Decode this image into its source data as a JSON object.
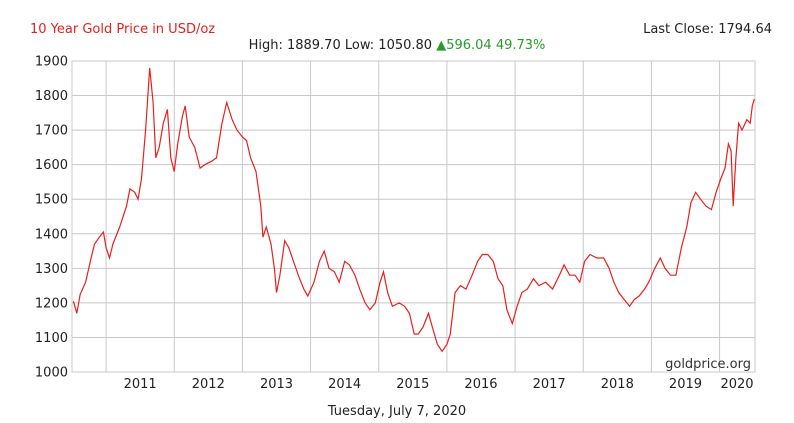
{
  "header": {
    "title": "10 Year Gold Price in USD/oz",
    "last_close_label": "Last Close:",
    "last_close_value": "1794.64",
    "high_label": "High:",
    "high_value": "1889.70",
    "low_label": "Low:",
    "low_value": "1050.80",
    "change_arrow": "▲",
    "change_value": "596.04",
    "change_percent": "49.73%"
  },
  "footer": {
    "date": "Tuesday, July 7, 2020"
  },
  "watermark": "goldprice.org",
  "colors": {
    "line": "#e8201d",
    "title": "#e8201d",
    "change": "#2a9a2a",
    "grid": "#c8c8c8"
  },
  "chart_data": {
    "type": "line",
    "title": "10 Year Gold Price in USD/oz",
    "xlabel": "",
    "ylabel": "",
    "xlim": [
      2010.5,
      2020.52
    ],
    "ylim": [
      1000,
      1900
    ],
    "grid": true,
    "x_ticks": [
      "2011",
      "2012",
      "2013",
      "2014",
      "2015",
      "2016",
      "2017",
      "2018",
      "2019",
      "2020"
    ],
    "y_ticks": [
      "1000",
      "1100",
      "1200",
      "1300",
      "1400",
      "1500",
      "1600",
      "1700",
      "1800",
      "1900"
    ],
    "series": [
      {
        "points": [
          [
            2010.52,
            1205
          ],
          [
            2010.57,
            1170
          ],
          [
            2010.62,
            1225
          ],
          [
            2010.7,
            1260
          ],
          [
            2010.78,
            1330
          ],
          [
            2010.83,
            1370
          ],
          [
            2010.9,
            1390
          ],
          [
            2010.96,
            1405
          ],
          [
            2011.0,
            1360
          ],
          [
            2011.05,
            1330
          ],
          [
            2011.1,
            1370
          ],
          [
            2011.2,
            1420
          ],
          [
            2011.3,
            1480
          ],
          [
            2011.35,
            1530
          ],
          [
            2011.42,
            1520
          ],
          [
            2011.47,
            1500
          ],
          [
            2011.52,
            1560
          ],
          [
            2011.58,
            1700
          ],
          [
            2011.64,
            1880
          ],
          [
            2011.69,
            1780
          ],
          [
            2011.73,
            1620
          ],
          [
            2011.78,
            1650
          ],
          [
            2011.84,
            1720
          ],
          [
            2011.9,
            1760
          ],
          [
            2011.95,
            1620
          ],
          [
            2012.0,
            1580
          ],
          [
            2012.05,
            1660
          ],
          [
            2012.12,
            1740
          ],
          [
            2012.16,
            1770
          ],
          [
            2012.22,
            1680
          ],
          [
            2012.3,
            1650
          ],
          [
            2012.38,
            1590
          ],
          [
            2012.45,
            1600
          ],
          [
            2012.55,
            1610
          ],
          [
            2012.62,
            1620
          ],
          [
            2012.7,
            1720
          ],
          [
            2012.77,
            1780
          ],
          [
            2012.85,
            1730
          ],
          [
            2012.92,
            1700
          ],
          [
            2013.0,
            1680
          ],
          [
            2013.06,
            1670
          ],
          [
            2013.12,
            1620
          ],
          [
            2013.2,
            1580
          ],
          [
            2013.27,
            1480
          ],
          [
            2013.3,
            1390
          ],
          [
            2013.35,
            1420
          ],
          [
            2013.42,
            1370
          ],
          [
            2013.47,
            1300
          ],
          [
            2013.5,
            1230
          ],
          [
            2013.55,
            1280
          ],
          [
            2013.62,
            1380
          ],
          [
            2013.68,
            1360
          ],
          [
            2013.75,
            1320
          ],
          [
            2013.82,
            1280
          ],
          [
            2013.9,
            1240
          ],
          [
            2013.96,
            1220
          ],
          [
            2014.05,
            1260
          ],
          [
            2014.13,
            1320
          ],
          [
            2014.2,
            1350
          ],
          [
            2014.27,
            1300
          ],
          [
            2014.35,
            1290
          ],
          [
            2014.42,
            1260
          ],
          [
            2014.5,
            1320
          ],
          [
            2014.57,
            1310
          ],
          [
            2014.65,
            1280
          ],
          [
            2014.72,
            1240
          ],
          [
            2014.8,
            1200
          ],
          [
            2014.87,
            1180
          ],
          [
            2014.95,
            1200
          ],
          [
            2015.02,
            1260
          ],
          [
            2015.07,
            1290
          ],
          [
            2015.13,
            1230
          ],
          [
            2015.2,
            1190
          ],
          [
            2015.3,
            1200
          ],
          [
            2015.38,
            1190
          ],
          [
            2015.45,
            1170
          ],
          [
            2015.52,
            1110
          ],
          [
            2015.58,
            1110
          ],
          [
            2015.65,
            1130
          ],
          [
            2015.73,
            1170
          ],
          [
            2015.8,
            1120
          ],
          [
            2015.86,
            1080
          ],
          [
            2015.93,
            1060
          ],
          [
            2016.0,
            1080
          ],
          [
            2016.05,
            1110
          ],
          [
            2016.12,
            1230
          ],
          [
            2016.2,
            1250
          ],
          [
            2016.28,
            1240
          ],
          [
            2016.37,
            1280
          ],
          [
            2016.45,
            1320
          ],
          [
            2016.52,
            1340
          ],
          [
            2016.6,
            1340
          ],
          [
            2016.68,
            1320
          ],
          [
            2016.75,
            1270
          ],
          [
            2016.82,
            1250
          ],
          [
            2016.88,
            1180
          ],
          [
            2016.96,
            1140
          ],
          [
            2017.03,
            1190
          ],
          [
            2017.1,
            1230
          ],
          [
            2017.18,
            1240
          ],
          [
            2017.27,
            1270
          ],
          [
            2017.35,
            1250
          ],
          [
            2017.45,
            1260
          ],
          [
            2017.55,
            1240
          ],
          [
            2017.65,
            1280
          ],
          [
            2017.72,
            1310
          ],
          [
            2017.8,
            1280
          ],
          [
            2017.88,
            1280
          ],
          [
            2017.95,
            1260
          ],
          [
            2018.02,
            1320
          ],
          [
            2018.1,
            1340
          ],
          [
            2018.2,
            1330
          ],
          [
            2018.3,
            1330
          ],
          [
            2018.38,
            1300
          ],
          [
            2018.45,
            1260
          ],
          [
            2018.52,
            1230
          ],
          [
            2018.6,
            1210
          ],
          [
            2018.68,
            1190
          ],
          [
            2018.75,
            1210
          ],
          [
            2018.82,
            1220
          ],
          [
            2018.9,
            1240
          ],
          [
            2018.96,
            1260
          ],
          [
            2019.05,
            1300
          ],
          [
            2019.13,
            1330
          ],
          [
            2019.2,
            1300
          ],
          [
            2019.28,
            1280
          ],
          [
            2019.36,
            1280
          ],
          [
            2019.44,
            1360
          ],
          [
            2019.52,
            1420
          ],
          [
            2019.58,
            1490
          ],
          [
            2019.65,
            1520
          ],
          [
            2019.72,
            1500
          ],
          [
            2019.8,
            1480
          ],
          [
            2019.88,
            1470
          ],
          [
            2019.95,
            1520
          ],
          [
            2020.02,
            1560
          ],
          [
            2020.08,
            1590
          ],
          [
            2020.13,
            1660
          ],
          [
            2020.17,
            1640
          ],
          [
            2020.2,
            1480
          ],
          [
            2020.24,
            1620
          ],
          [
            2020.28,
            1720
          ],
          [
            2020.33,
            1700
          ],
          [
            2020.4,
            1730
          ],
          [
            2020.45,
            1720
          ],
          [
            2020.48,
            1770
          ],
          [
            2020.51,
            1790
          ]
        ]
      }
    ]
  }
}
